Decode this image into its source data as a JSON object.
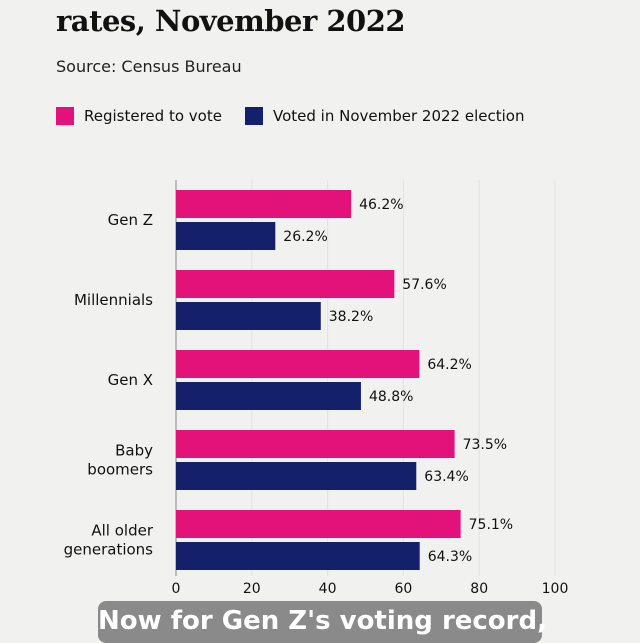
{
  "header": {
    "title": "rates, November 2022",
    "source": "Source: Census Bureau"
  },
  "caption": "Now for Gen Z's voting record,",
  "chart_data": {
    "type": "bar",
    "orientation": "horizontal",
    "categories": [
      "Gen Z",
      "Millennials",
      "Gen X",
      "Baby boomers",
      "All older generations"
    ],
    "series": [
      {
        "name": "Registered to vote",
        "color": "#e2127a",
        "values": [
          46.2,
          57.6,
          64.2,
          73.5,
          75.1
        ],
        "labels": [
          "46.2%",
          "57.6%",
          "64.2%",
          "73.5%",
          "75.1%"
        ]
      },
      {
        "name": "Voted in November 2022 election",
        "color": "#14206b",
        "values": [
          26.2,
          38.2,
          48.8,
          63.4,
          64.3
        ],
        "labels": [
          "26.2%",
          "38.2%",
          "48.8%",
          "63.4%",
          "64.3%"
        ]
      }
    ],
    "xlim": [
      0,
      100
    ],
    "xticks": [
      "0",
      "20",
      "40",
      "60",
      "80",
      "100"
    ],
    "grid": true,
    "legend": "top-left"
  }
}
